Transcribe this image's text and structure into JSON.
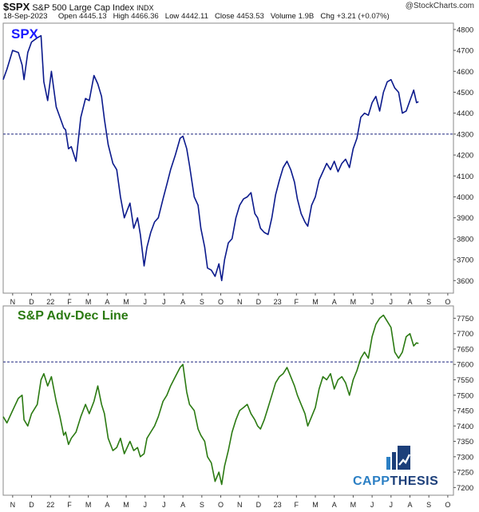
{
  "header": {
    "ticker": "$SPX",
    "name": "S&P 500 Large Cap Index",
    "exchange": "INDX",
    "date": "18-Sep-2023",
    "open_label": "Open",
    "open": "4445.13",
    "high_label": "High",
    "high": "4466.36",
    "low_label": "Low",
    "low": "4442.11",
    "close_label": "Close",
    "close": "4453.53",
    "volume_label": "Volume",
    "volume": "1.9B",
    "chg_label": "Chg",
    "chg": "+3.21 (+0.07%)",
    "watermark": "@StockCharts.com"
  },
  "logo": {
    "part1": "CAPP",
    "part2": "THESIS"
  },
  "colors": {
    "spx": "#0b1a8c",
    "adline": "#2b7a12",
    "ref": "#1a237e",
    "grid": "#c8c8c8"
  },
  "chart_data": [
    {
      "type": "line",
      "title": "SPX",
      "series_name": "SPX",
      "ylim": [
        3540,
        4830
      ],
      "yticks": [
        3600,
        3700,
        3800,
        3900,
        4000,
        4100,
        4200,
        4300,
        4400,
        4500,
        4600,
        4700,
        4800
      ],
      "reference_line": 4300,
      "x_labels": [
        "N",
        "D",
        "22",
        "F",
        "M",
        "A",
        "M",
        "J",
        "J",
        "A",
        "S",
        "O",
        "N",
        "D",
        "23",
        "F",
        "M",
        "A",
        "M",
        "J",
        "J",
        "A",
        "S",
        "O"
      ],
      "x_span": [
        0,
        23.8
      ],
      "points": [
        [
          0,
          4560
        ],
        [
          0.2,
          4610
        ],
        [
          0.5,
          4700
        ],
        [
          0.8,
          4690
        ],
        [
          1.0,
          4630
        ],
        [
          1.1,
          4560
        ],
        [
          1.3,
          4690
        ],
        [
          1.5,
          4740
        ],
        [
          1.8,
          4760
        ],
        [
          2.0,
          4770
        ],
        [
          2.15,
          4550
        ],
        [
          2.35,
          4460
        ],
        [
          2.55,
          4600
        ],
        [
          2.8,
          4430
        ],
        [
          3.0,
          4380
        ],
        [
          3.2,
          4330
        ],
        [
          3.3,
          4320
        ],
        [
          3.45,
          4230
        ],
        [
          3.6,
          4240
        ],
        [
          3.85,
          4170
        ],
        [
          4.1,
          4380
        ],
        [
          4.35,
          4470
        ],
        [
          4.55,
          4460
        ],
        [
          4.8,
          4580
        ],
        [
          5.0,
          4540
        ],
        [
          5.2,
          4480
        ],
        [
          5.35,
          4370
        ],
        [
          5.55,
          4250
        ],
        [
          5.8,
          4160
        ],
        [
          6.0,
          4130
        ],
        [
          6.2,
          4000
        ],
        [
          6.4,
          3900
        ],
        [
          6.7,
          3970
        ],
        [
          6.9,
          3850
        ],
        [
          7.1,
          3900
        ],
        [
          7.25,
          3820
        ],
        [
          7.45,
          3670
        ],
        [
          7.6,
          3760
        ],
        [
          7.8,
          3830
        ],
        [
          8.0,
          3880
        ],
        [
          8.2,
          3900
        ],
        [
          8.45,
          3990
        ],
        [
          8.65,
          4060
        ],
        [
          8.85,
          4130
        ],
        [
          9.1,
          4200
        ],
        [
          9.35,
          4280
        ],
        [
          9.5,
          4290
        ],
        [
          9.7,
          4230
        ],
        [
          9.85,
          4150
        ],
        [
          10.1,
          4000
        ],
        [
          10.3,
          3960
        ],
        [
          10.45,
          3850
        ],
        [
          10.65,
          3760
        ],
        [
          10.8,
          3660
        ],
        [
          11.0,
          3650
        ],
        [
          11.2,
          3620
        ],
        [
          11.4,
          3680
        ],
        [
          11.55,
          3600
        ],
        [
          11.7,
          3700
        ],
        [
          11.9,
          3780
        ],
        [
          12.1,
          3800
        ],
        [
          12.3,
          3900
        ],
        [
          12.5,
          3960
        ],
        [
          12.7,
          3990
        ],
        [
          12.9,
          4000
        ],
        [
          13.1,
          4020
        ],
        [
          13.3,
          3920
        ],
        [
          13.45,
          3900
        ],
        [
          13.6,
          3850
        ],
        [
          13.8,
          3830
        ],
        [
          14.0,
          3820
        ],
        [
          14.2,
          3900
        ],
        [
          14.4,
          4010
        ],
        [
          14.6,
          4080
        ],
        [
          14.8,
          4140
        ],
        [
          15.0,
          4170
        ],
        [
          15.2,
          4130
        ],
        [
          15.4,
          4070
        ],
        [
          15.55,
          3990
        ],
        [
          15.75,
          3920
        ],
        [
          15.95,
          3880
        ],
        [
          16.1,
          3860
        ],
        [
          16.3,
          3960
        ],
        [
          16.5,
          4000
        ],
        [
          16.7,
          4080
        ],
        [
          16.9,
          4120
        ],
        [
          17.1,
          4160
        ],
        [
          17.3,
          4130
        ],
        [
          17.5,
          4170
        ],
        [
          17.7,
          4120
        ],
        [
          17.9,
          4160
        ],
        [
          18.1,
          4180
        ],
        [
          18.3,
          4140
        ],
        [
          18.5,
          4230
        ],
        [
          18.7,
          4280
        ],
        [
          18.9,
          4380
        ],
        [
          19.1,
          4400
        ],
        [
          19.3,
          4390
        ],
        [
          19.5,
          4450
        ],
        [
          19.7,
          4480
        ],
        [
          19.9,
          4410
        ],
        [
          20.1,
          4500
        ],
        [
          20.3,
          4550
        ],
        [
          20.5,
          4560
        ],
        [
          20.7,
          4520
        ],
        [
          20.9,
          4500
        ],
        [
          21.1,
          4400
        ],
        [
          21.3,
          4410
        ],
        [
          21.5,
          4460
        ],
        [
          21.7,
          4510
        ],
        [
          21.85,
          4450
        ],
        [
          21.95,
          4455
        ]
      ]
    },
    {
      "type": "line",
      "title": "S&P Adv-Dec Line",
      "series_name": "S&P Adv-Dec Line",
      "ylim": [
        7175,
        7790
      ],
      "yticks": [
        7200,
        7250,
        7300,
        7350,
        7400,
        7450,
        7500,
        7550,
        7600,
        7650,
        7700,
        7750
      ],
      "reference_line": 7608,
      "x_labels": [
        "N",
        "D",
        "22",
        "F",
        "M",
        "A",
        "M",
        "J",
        "J",
        "A",
        "S",
        "O",
        "N",
        "D",
        "23",
        "F",
        "M",
        "A",
        "M",
        "J",
        "J",
        "A",
        "S",
        "O"
      ],
      "x_span": [
        0,
        23.8
      ],
      "points": [
        [
          0,
          7430
        ],
        [
          0.2,
          7410
        ],
        [
          0.5,
          7450
        ],
        [
          0.8,
          7490
        ],
        [
          1.0,
          7500
        ],
        [
          1.1,
          7420
        ],
        [
          1.3,
          7400
        ],
        [
          1.5,
          7440
        ],
        [
          1.8,
          7470
        ],
        [
          2.0,
          7550
        ],
        [
          2.15,
          7570
        ],
        [
          2.35,
          7530
        ],
        [
          2.55,
          7560
        ],
        [
          2.8,
          7480
        ],
        [
          3.0,
          7430
        ],
        [
          3.2,
          7370
        ],
        [
          3.3,
          7380
        ],
        [
          3.45,
          7340
        ],
        [
          3.6,
          7360
        ],
        [
          3.85,
          7380
        ],
        [
          4.1,
          7430
        ],
        [
          4.35,
          7470
        ],
        [
          4.55,
          7440
        ],
        [
          4.8,
          7480
        ],
        [
          5.0,
          7530
        ],
        [
          5.2,
          7470
        ],
        [
          5.35,
          7440
        ],
        [
          5.55,
          7360
        ],
        [
          5.8,
          7320
        ],
        [
          6.0,
          7330
        ],
        [
          6.2,
          7360
        ],
        [
          6.4,
          7310
        ],
        [
          6.7,
          7350
        ],
        [
          6.9,
          7320
        ],
        [
          7.1,
          7330
        ],
        [
          7.25,
          7300
        ],
        [
          7.45,
          7310
        ],
        [
          7.6,
          7360
        ],
        [
          7.8,
          7380
        ],
        [
          8.0,
          7400
        ],
        [
          8.2,
          7430
        ],
        [
          8.45,
          7480
        ],
        [
          8.65,
          7500
        ],
        [
          8.85,
          7530
        ],
        [
          9.1,
          7560
        ],
        [
          9.35,
          7590
        ],
        [
          9.5,
          7600
        ],
        [
          9.7,
          7510
        ],
        [
          9.85,
          7470
        ],
        [
          10.1,
          7450
        ],
        [
          10.3,
          7390
        ],
        [
          10.45,
          7370
        ],
        [
          10.65,
          7350
        ],
        [
          10.8,
          7300
        ],
        [
          11.0,
          7280
        ],
        [
          11.2,
          7220
        ],
        [
          11.4,
          7250
        ],
        [
          11.55,
          7210
        ],
        [
          11.7,
          7270
        ],
        [
          11.9,
          7320
        ],
        [
          12.1,
          7380
        ],
        [
          12.3,
          7420
        ],
        [
          12.5,
          7450
        ],
        [
          12.7,
          7460
        ],
        [
          12.9,
          7470
        ],
        [
          13.1,
          7440
        ],
        [
          13.3,
          7420
        ],
        [
          13.45,
          7400
        ],
        [
          13.6,
          7390
        ],
        [
          13.8,
          7420
        ],
        [
          14.0,
          7460
        ],
        [
          14.2,
          7500
        ],
        [
          14.4,
          7540
        ],
        [
          14.6,
          7560
        ],
        [
          14.8,
          7570
        ],
        [
          15.0,
          7590
        ],
        [
          15.2,
          7560
        ],
        [
          15.4,
          7530
        ],
        [
          15.55,
          7500
        ],
        [
          15.75,
          7470
        ],
        [
          15.95,
          7440
        ],
        [
          16.1,
          7400
        ],
        [
          16.3,
          7430
        ],
        [
          16.5,
          7460
        ],
        [
          16.7,
          7520
        ],
        [
          16.9,
          7560
        ],
        [
          17.1,
          7550
        ],
        [
          17.3,
          7570
        ],
        [
          17.5,
          7520
        ],
        [
          17.7,
          7550
        ],
        [
          17.9,
          7560
        ],
        [
          18.1,
          7540
        ],
        [
          18.3,
          7500
        ],
        [
          18.5,
          7550
        ],
        [
          18.7,
          7580
        ],
        [
          18.9,
          7620
        ],
        [
          19.1,
          7640
        ],
        [
          19.3,
          7620
        ],
        [
          19.5,
          7690
        ],
        [
          19.7,
          7730
        ],
        [
          19.9,
          7750
        ],
        [
          20.1,
          7760
        ],
        [
          20.3,
          7740
        ],
        [
          20.5,
          7720
        ],
        [
          20.7,
          7640
        ],
        [
          20.9,
          7620
        ],
        [
          21.1,
          7640
        ],
        [
          21.3,
          7690
        ],
        [
          21.5,
          7700
        ],
        [
          21.7,
          7660
        ],
        [
          21.85,
          7670
        ],
        [
          21.95,
          7668
        ]
      ]
    }
  ]
}
